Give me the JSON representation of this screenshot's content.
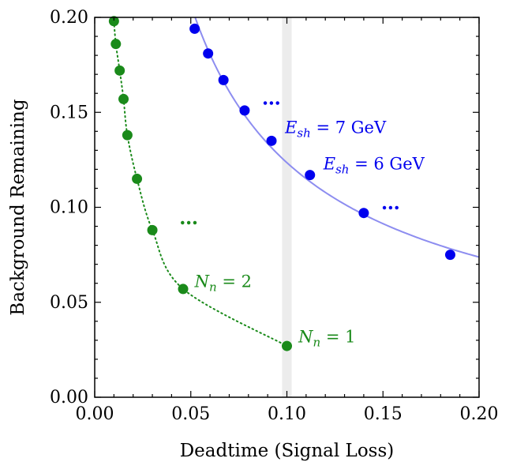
{
  "chart_data": {
    "type": "scatter",
    "xlabel": "Deadtime (Signal Loss)",
    "ylabel": "Background Remaining",
    "xlim": [
      0.0,
      0.2
    ],
    "ylim": [
      0.0,
      0.2
    ],
    "x_ticks": [
      "0.00",
      "0.05",
      "0.10",
      "0.15",
      "0.20"
    ],
    "y_ticks": [
      "0.00",
      "0.05",
      "0.10",
      "0.15",
      "0.20"
    ],
    "grid": false,
    "highlight_band_x": [
      0.0975,
      0.1025
    ],
    "series": [
      {
        "color": "#1a8a1a",
        "line_style": "dotted",
        "points": [
          {
            "x": 0.01,
            "y": 0.198
          },
          {
            "x": 0.011,
            "y": 0.186
          },
          {
            "x": 0.013,
            "y": 0.172
          },
          {
            "x": 0.015,
            "y": 0.157
          },
          {
            "x": 0.017,
            "y": 0.138
          },
          {
            "x": 0.022,
            "y": 0.115
          },
          {
            "x": 0.03,
            "y": 0.088
          },
          {
            "x": 0.046,
            "y": 0.057
          },
          {
            "x": 0.1,
            "y": 0.027
          }
        ]
      },
      {
        "color": "#0000ee",
        "line_color": "#8d8df0",
        "line_style": "solid",
        "points": [
          {
            "x": 0.052,
            "y": 0.194
          },
          {
            "x": 0.059,
            "y": 0.181
          },
          {
            "x": 0.067,
            "y": 0.167
          },
          {
            "x": 0.078,
            "y": 0.151
          },
          {
            "x": 0.092,
            "y": 0.135
          },
          {
            "x": 0.112,
            "y": 0.117
          },
          {
            "x": 0.14,
            "y": 0.097
          },
          {
            "x": 0.185,
            "y": 0.075
          }
        ]
      }
    ],
    "annotations": [
      {
        "series": 0,
        "symbol": "N",
        "sub": "n",
        "rest": " = 2",
        "color": "#1a8a1a",
        "x": 0.052,
        "y": 0.058
      },
      {
        "series": 0,
        "symbol": "N",
        "sub": "n",
        "rest": " = 1",
        "color": "#1a8a1a",
        "x": 0.106,
        "y": 0.029
      },
      {
        "series": 1,
        "symbol": "E",
        "sub": "sh",
        "rest": " = 7 GeV",
        "color": "#0000ee",
        "x": 0.099,
        "y": 0.139
      },
      {
        "series": 1,
        "symbol": "E",
        "sub": "sh",
        "rest": " = 6 GeV",
        "color": "#0000ee",
        "x": 0.119,
        "y": 0.12
      }
    ],
    "ellipses": [
      {
        "text": "…",
        "color": "#1a8a1a",
        "x": 0.044,
        "y": 0.091
      },
      {
        "text": "…",
        "color": "#0000ee",
        "x": 0.087,
        "y": 0.154
      },
      {
        "text": "…",
        "color": "#0000ee",
        "x": 0.149,
        "y": 0.099
      }
    ]
  }
}
